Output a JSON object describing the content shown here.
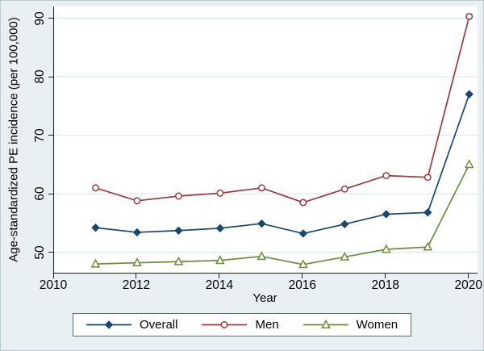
{
  "chart_data": {
    "type": "line",
    "title": "",
    "xlabel": "Year",
    "ylabel": "Age-standardized PE incidence (per 100,000)",
    "x": [
      2011,
      2012,
      2013,
      2014,
      2015,
      2016,
      2017,
      2018,
      2019,
      2020
    ],
    "x_ticks": [
      2010,
      2012,
      2014,
      2016,
      2018,
      2020
    ],
    "y_ticks": [
      50,
      60,
      70,
      80,
      90
    ],
    "x_range": [
      2010,
      2020.2
    ],
    "y_range": [
      46.5,
      92
    ],
    "grid": "horizontal-only",
    "legend_position": "bottom-center",
    "series": [
      {
        "name": "Overall",
        "color": "#1a476f",
        "marker": "diamond-filled",
        "values": [
          54.2,
          53.4,
          53.7,
          54.1,
          54.9,
          53.2,
          54.8,
          56.5,
          56.8,
          77.0
        ]
      },
      {
        "name": "Men",
        "color": "#9c3a40",
        "marker": "circle-open",
        "values": [
          61.0,
          58.8,
          59.6,
          60.1,
          61.0,
          58.5,
          60.8,
          63.1,
          62.8,
          90.3
        ]
      },
      {
        "name": "Women",
        "color": "#6e8b3d",
        "marker": "triangle-open",
        "values": [
          48.0,
          48.2,
          48.4,
          48.6,
          49.3,
          47.9,
          49.2,
          50.5,
          50.9,
          65.0
        ]
      }
    ]
  },
  "colors": {
    "background": "#e9f0f2",
    "plot_background": "#ffffff",
    "grid": "#dfe9ec",
    "axis": "#1f1f1f",
    "legend_border": "#5f6a6e"
  }
}
